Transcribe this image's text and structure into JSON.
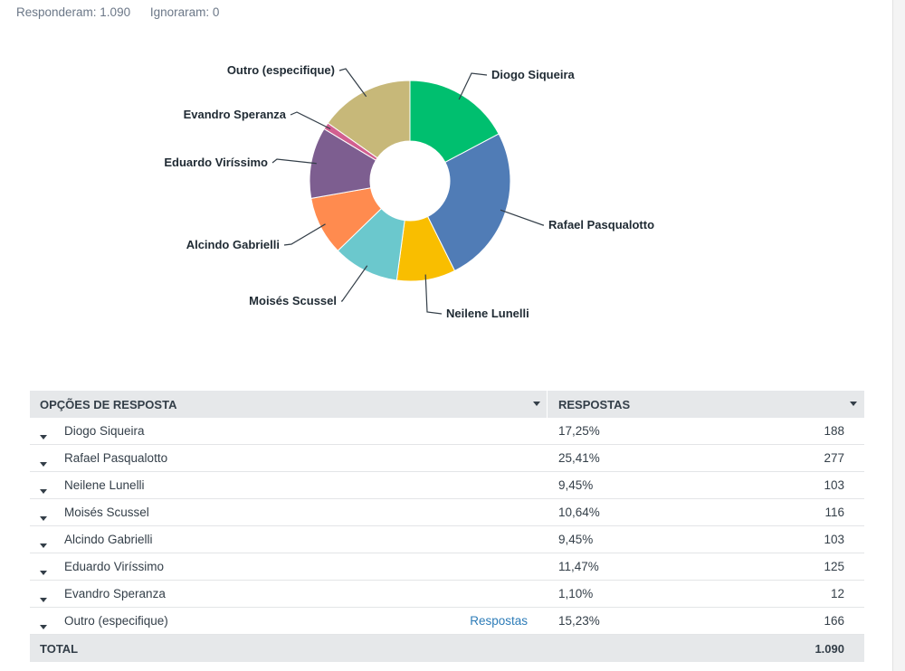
{
  "summary": {
    "answered": "Responderam: 1.090",
    "skipped": "Ignoraram: 0"
  },
  "chart_data": {
    "type": "pie",
    "donut": true,
    "categories": [
      "Diogo Siqueira",
      "Rafael Pasqualotto",
      "Neilene Lunelli",
      "Moisés Scussel",
      "Alcindo Gabrielli",
      "Eduardo Viríssimo",
      "Evandro Speranza",
      "Outro (especifique)"
    ],
    "values": [
      17.25,
      25.41,
      9.45,
      10.64,
      9.45,
      11.47,
      1.1,
      15.23
    ],
    "colors": [
      "#00bf6f",
      "#507cb6",
      "#f9be00",
      "#6bc8cd",
      "#ff8b4f",
      "#7d5e90",
      "#d25f90",
      "#c7b879"
    ]
  },
  "table": {
    "header": {
      "options": "OPÇÕES DE RESPOSTA",
      "responses": "RESPOSTAS"
    },
    "rows": [
      {
        "label": "Diogo Siqueira",
        "pct": "17,25%",
        "count": "188",
        "link": ""
      },
      {
        "label": "Rafael Pasqualotto",
        "pct": "25,41%",
        "count": "277",
        "link": ""
      },
      {
        "label": "Neilene Lunelli",
        "pct": "9,45%",
        "count": "103",
        "link": ""
      },
      {
        "label": "Moisés Scussel",
        "pct": "10,64%",
        "count": "116",
        "link": ""
      },
      {
        "label": "Alcindo Gabrielli",
        "pct": "9,45%",
        "count": "103",
        "link": ""
      },
      {
        "label": "Eduardo Viríssimo",
        "pct": "11,47%",
        "count": "125",
        "link": ""
      },
      {
        "label": "Evandro Speranza",
        "pct": "1,10%",
        "count": "12",
        "link": ""
      },
      {
        "label": "Outro (especifique)",
        "pct": "15,23%",
        "count": "166",
        "link": "Respostas"
      }
    ],
    "total": {
      "label": "TOTAL",
      "value": "1.090"
    }
  }
}
